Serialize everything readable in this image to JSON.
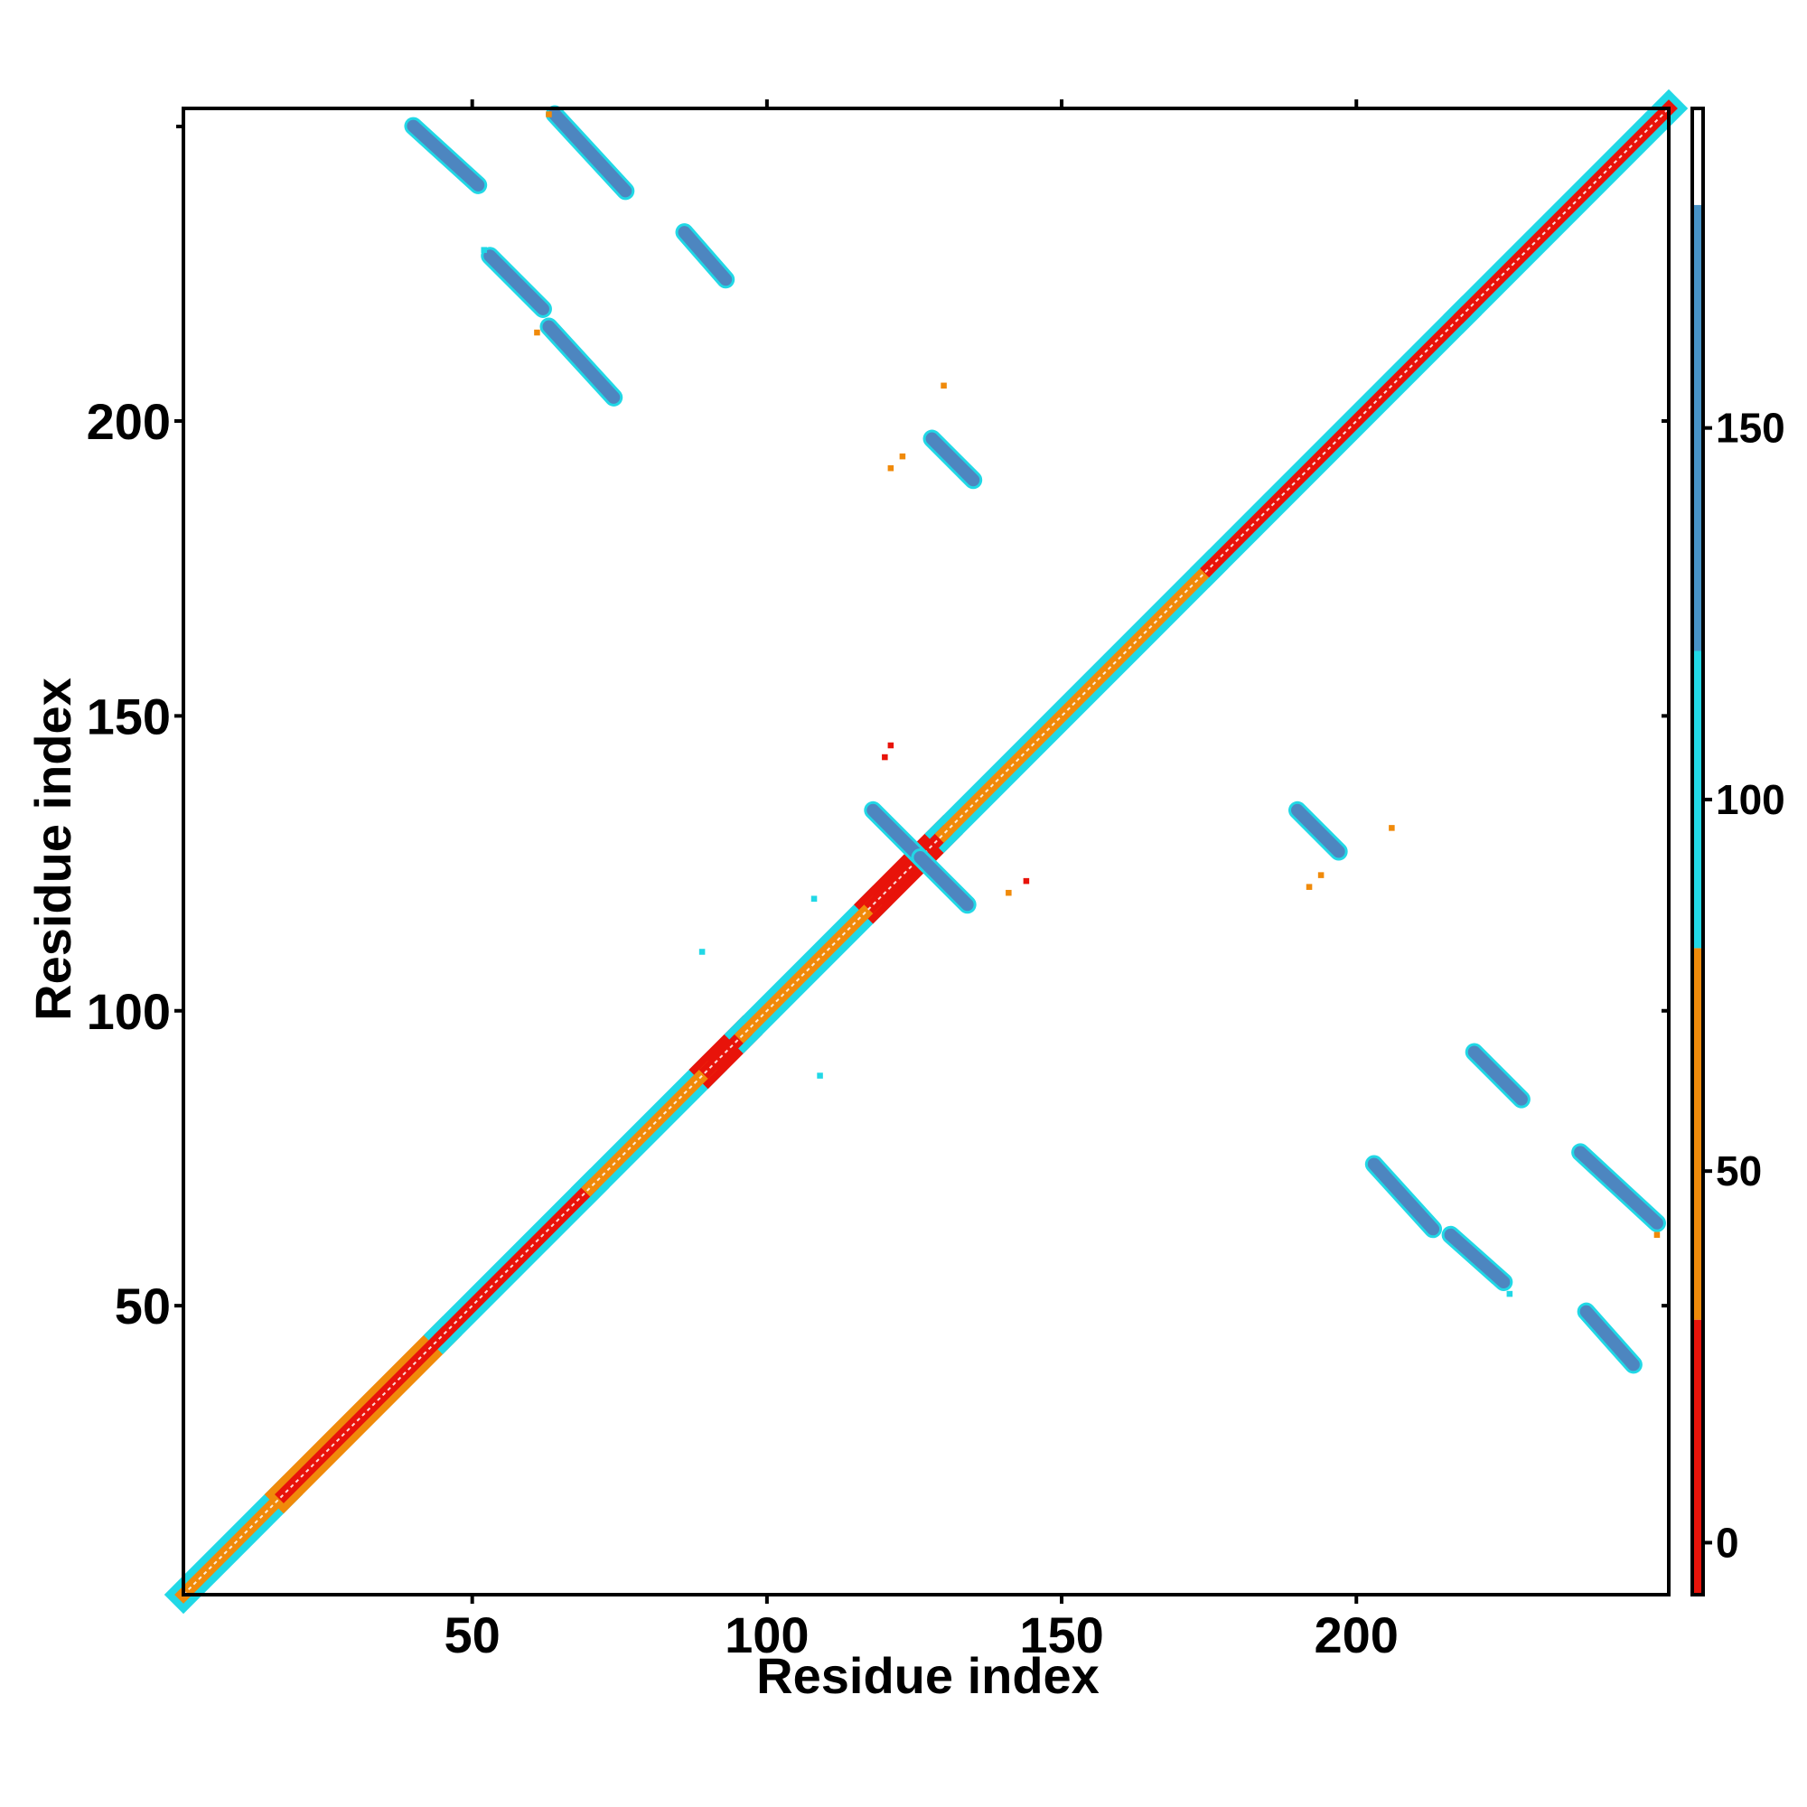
{
  "chart_data": {
    "type": "heatmap",
    "title": "",
    "xlabel": "Residue index",
    "ylabel": "Residue index",
    "xlim": [
      1,
      253
    ],
    "ylim": [
      1,
      253
    ],
    "x_ticks": [
      50,
      100,
      150,
      200
    ],
    "y_ticks": [
      50,
      100,
      150,
      200
    ],
    "grid": false,
    "legend": "colorbar-right",
    "colorbar": {
      "ticks": [
        0,
        50,
        100,
        150
      ],
      "range": [
        -7,
        193
      ],
      "bands": [
        {
          "from": -7,
          "to": 30,
          "color": "#e8130a"
        },
        {
          "from": 30,
          "to": 80,
          "color": "#f08a0a"
        },
        {
          "from": 80,
          "to": 180,
          "color": "#21d8e6"
        },
        {
          "from": 180,
          "to": 193,
          "color": "#ffffff"
        }
      ]
    },
    "colors": {
      "red": "#e8130a",
      "orange": "#f08a0a",
      "cyan": "#21d8e6",
      "steelblue": "#4d86c0",
      "white": "#ffffff"
    },
    "diagonal": [
      {
        "from": 1,
        "to": 18,
        "color": "orange",
        "halo": "cyan"
      },
      {
        "from": 18,
        "to": 45,
        "color": "red",
        "halo": "orange"
      },
      {
        "from": 45,
        "to": 70,
        "color": "red",
        "halo": "cyan"
      },
      {
        "from": 70,
        "to": 90,
        "color": "orange",
        "halo": "cyan"
      },
      {
        "from": 90,
        "to": 96,
        "color": "red",
        "halo": "red"
      },
      {
        "from": 96,
        "to": 118,
        "color": "orange",
        "halo": "cyan"
      },
      {
        "from": 118,
        "to": 130,
        "color": "red",
        "halo": "red"
      },
      {
        "from": 130,
        "to": 175,
        "color": "orange",
        "halo": "cyan"
      },
      {
        "from": 175,
        "to": 218,
        "color": "red",
        "halo": "cyan"
      },
      {
        "from": 218,
        "to": 253,
        "color": "red",
        "halo": "cyan"
      }
    ],
    "contact_segments": [
      {
        "x1": 40,
        "y1": 250,
        "x2": 51,
        "y2": 240,
        "color": "steelblue"
      },
      {
        "x1": 64,
        "y1": 252,
        "x2": 76,
        "y2": 239,
        "color": "steelblue"
      },
      {
        "x1": 86,
        "y1": 232,
        "x2": 93,
        "y2": 224,
        "color": "steelblue"
      },
      {
        "x1": 53,
        "y1": 228,
        "x2": 62,
        "y2": 219,
        "color": "steelblue"
      },
      {
        "x1": 63,
        "y1": 216,
        "x2": 74,
        "y2": 204,
        "color": "steelblue"
      },
      {
        "x1": 128,
        "y1": 197,
        "x2": 135,
        "y2": 190,
        "color": "steelblue"
      },
      {
        "x1": 118,
        "y1": 134,
        "x2": 126,
        "y2": 126,
        "color": "steelblue"
      },
      {
        "x1": 126,
        "y1": 126,
        "x2": 134,
        "y2": 118,
        "color": "steelblue"
      },
      {
        "x1": 190,
        "y1": 134,
        "x2": 197,
        "y2": 127,
        "color": "steelblue"
      },
      {
        "x1": 220,
        "y1": 93,
        "x2": 228,
        "y2": 85,
        "color": "steelblue"
      },
      {
        "x1": 203,
        "y1": 74,
        "x2": 213,
        "y2": 63,
        "color": "steelblue"
      },
      {
        "x1": 216,
        "y1": 62,
        "x2": 225,
        "y2": 54,
        "color": "steelblue"
      },
      {
        "x1": 238,
        "y1": 76,
        "x2": 251,
        "y2": 64,
        "color": "steelblue"
      },
      {
        "x1": 239,
        "y1": 49,
        "x2": 247,
        "y2": 40,
        "color": "steelblue"
      }
    ],
    "scatter_points": [
      {
        "x": 130,
        "y": 206,
        "color": "orange"
      },
      {
        "x": 121,
        "y": 192,
        "color": "orange"
      },
      {
        "x": 123,
        "y": 194,
        "color": "orange"
      },
      {
        "x": 121,
        "y": 145,
        "color": "red"
      },
      {
        "x": 120,
        "y": 143,
        "color": "red"
      },
      {
        "x": 141,
        "y": 120,
        "color": "orange"
      },
      {
        "x": 144,
        "y": 122,
        "color": "red"
      },
      {
        "x": 206,
        "y": 131,
        "color": "orange"
      },
      {
        "x": 192,
        "y": 121,
        "color": "orange"
      },
      {
        "x": 194,
        "y": 123,
        "color": "orange"
      },
      {
        "x": 89,
        "y": 110,
        "color": "cyan"
      },
      {
        "x": 109,
        "y": 89,
        "color": "cyan"
      },
      {
        "x": 108,
        "y": 119,
        "color": "cyan"
      },
      {
        "x": 226,
        "y": 52,
        "color": "cyan"
      },
      {
        "x": 251,
        "y": 62,
        "color": "orange"
      },
      {
        "x": 61,
        "y": 215,
        "color": "orange"
      },
      {
        "x": 52,
        "y": 229,
        "color": "cyan"
      },
      {
        "x": 63,
        "y": 252,
        "color": "orange"
      }
    ]
  }
}
